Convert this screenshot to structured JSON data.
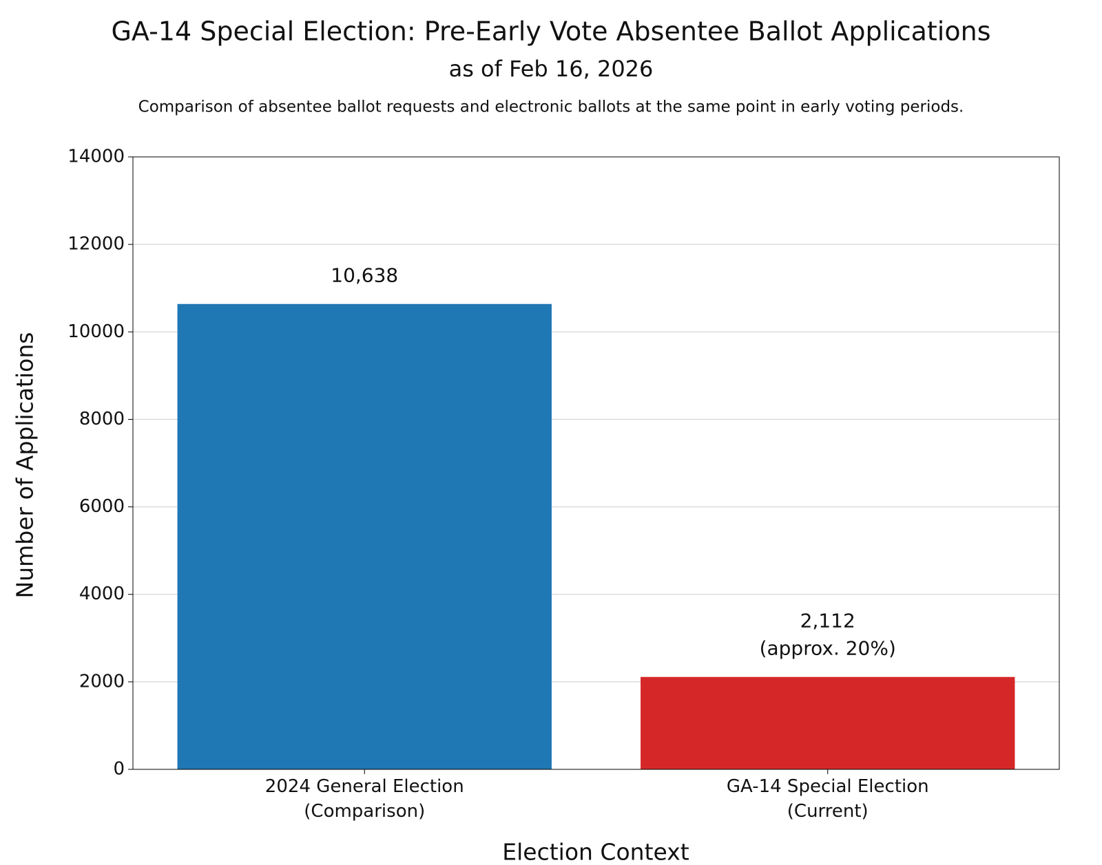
{
  "chart_data": {
    "type": "bar",
    "title": "GA-14 Special Election: Pre-Early Vote Absentee Ballot Applications",
    "subtitle": "as of Feb 16, 2026",
    "description": "Comparison of absentee ballot requests and electronic ballots at the same point in early voting periods.",
    "x_label": "Election Context",
    "y_label": "Number of Applications",
    "categories": [
      "2024 General Election\n(Comparison)",
      "GA-14 Special Election\n(Current)"
    ],
    "values": [
      10638,
      2112
    ],
    "value_labels": [
      "10,638",
      "2,112\n(approx. 20%)"
    ],
    "colors": [
      "#1f77b4",
      "#d62728"
    ],
    "ylim": [
      0,
      14000
    ],
    "yticks": [
      0,
      2000,
      4000,
      6000,
      8000,
      10000,
      12000,
      14000
    ],
    "grid": true
  }
}
